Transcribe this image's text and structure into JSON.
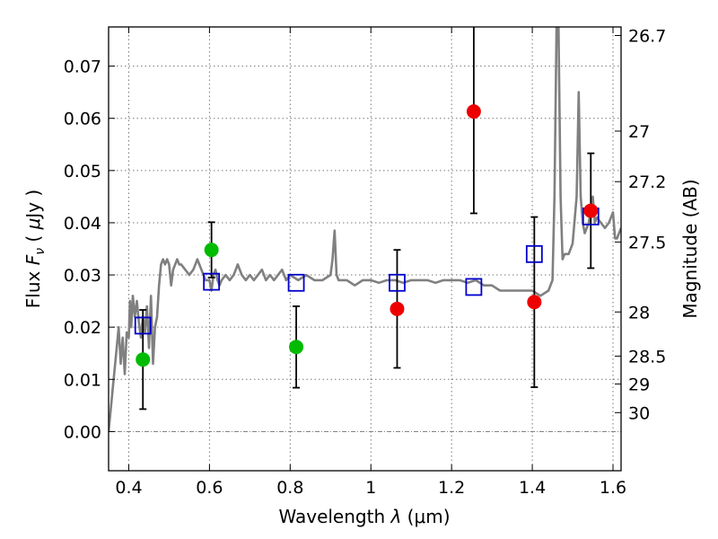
{
  "chart_data": {
    "type": "scatter",
    "xlabel": "Wavelength  λ (μm)",
    "ylabel": "Flux  F_ν  ( μJy )",
    "ylabel_parts": {
      "pre": "Flux  ",
      "var": "F",
      "sub": "ν",
      "mid": "  ( ",
      "unit_var": "μ",
      "post": "Jy )"
    },
    "xlabel_parts": {
      "pre": "Wavelength  ",
      "var": "λ",
      "post": " (μm)"
    },
    "y2label": "Magnitude (AB)",
    "xlim": [
      0.35,
      1.62
    ],
    "ylim": [
      -0.0075,
      0.0775
    ],
    "grid": true,
    "x_ticks": [
      {
        "value": 0.4,
        "label": "0.4"
      },
      {
        "value": 0.6,
        "label": "0.6"
      },
      {
        "value": 0.8,
        "label": "0.8"
      },
      {
        "value": 1.0,
        "label": "1"
      },
      {
        "value": 1.2,
        "label": "1.2"
      },
      {
        "value": 1.4,
        "label": "1.4"
      },
      {
        "value": 1.6,
        "label": "1.6"
      }
    ],
    "y_ticks": [
      {
        "value": 0.0,
        "label": "0.00"
      },
      {
        "value": 0.01,
        "label": "0.01"
      },
      {
        "value": 0.02,
        "label": "0.02"
      },
      {
        "value": 0.03,
        "label": "0.03"
      },
      {
        "value": 0.04,
        "label": "0.04"
      },
      {
        "value": 0.05,
        "label": "0.05"
      },
      {
        "value": 0.06,
        "label": "0.06"
      },
      {
        "value": 0.07,
        "label": "0.07"
      }
    ],
    "y2_ticks": [
      {
        "mag": 26.7,
        "label": "26.7"
      },
      {
        "mag": 27.0,
        "label": "27"
      },
      {
        "mag": 27.2,
        "label": "27.2"
      },
      {
        "mag": 27.5,
        "label": "27.5"
      },
      {
        "mag": 28.0,
        "label": "28"
      },
      {
        "mag": 28.5,
        "label": "28.5"
      },
      {
        "mag": 29.0,
        "label": "29"
      },
      {
        "mag": 30.0,
        "label": "30"
      }
    ],
    "colors": {
      "spectrum": "#808080",
      "model_box": "#0000cc",
      "green_point": "#00bb00",
      "red_point": "#ee0000",
      "errorbar": "#000000",
      "grid": "#777777"
    },
    "series": [
      {
        "marker": "circle-green",
        "points": [
          {
            "x": 0.435,
            "y": 0.0138,
            "err": 0.0095
          },
          {
            "x": 0.605,
            "y": 0.0348,
            "err": 0.0053
          },
          {
            "x": 0.815,
            "y": 0.0162,
            "err": 0.0078
          }
        ]
      },
      {
        "marker": "circle-red",
        "points": [
          {
            "x": 1.065,
            "y": 0.0235,
            "err": 0.0113
          },
          {
            "x": 1.255,
            "y": 0.0613,
            "err": 0.0195
          },
          {
            "x": 1.405,
            "y": 0.0248,
            "err": 0.0163
          },
          {
            "x": 1.545,
            "y": 0.0423,
            "err": 0.011
          }
        ]
      },
      {
        "marker": "open-square-blue",
        "points": [
          {
            "x": 0.435,
            "y": 0.0203
          },
          {
            "x": 0.605,
            "y": 0.0287
          },
          {
            "x": 0.815,
            "y": 0.0285
          },
          {
            "x": 1.065,
            "y": 0.0285
          },
          {
            "x": 1.255,
            "y": 0.0277
          },
          {
            "x": 1.405,
            "y": 0.034
          },
          {
            "x": 1.545,
            "y": 0.0412
          }
        ]
      },
      {
        "marker": "line-gray",
        "x": [
          0.35,
          0.36,
          0.37,
          0.375,
          0.38,
          0.385,
          0.39,
          0.395,
          0.4,
          0.403,
          0.406,
          0.41,
          0.415,
          0.42,
          0.425,
          0.43,
          0.435,
          0.44,
          0.445,
          0.45,
          0.455,
          0.46,
          0.465,
          0.47,
          0.475,
          0.48,
          0.485,
          0.49,
          0.495,
          0.5,
          0.505,
          0.51,
          0.515,
          0.52,
          0.525,
          0.53,
          0.54,
          0.55,
          0.56,
          0.57,
          0.58,
          0.59,
          0.6,
          0.605,
          0.61,
          0.615,
          0.62,
          0.625,
          0.63,
          0.64,
          0.65,
          0.66,
          0.67,
          0.68,
          0.69,
          0.7,
          0.71,
          0.72,
          0.73,
          0.74,
          0.75,
          0.76,
          0.77,
          0.78,
          0.79,
          0.8,
          0.82,
          0.84,
          0.86,
          0.88,
          0.9,
          0.905,
          0.91,
          0.915,
          0.92,
          0.94,
          0.96,
          0.98,
          1.0,
          1.02,
          1.04,
          1.06,
          1.08,
          1.1,
          1.12,
          1.14,
          1.16,
          1.18,
          1.2,
          1.22,
          1.24,
          1.26,
          1.28,
          1.3,
          1.32,
          1.34,
          1.36,
          1.38,
          1.4,
          1.42,
          1.44,
          1.45,
          1.455,
          1.46,
          1.465,
          1.47,
          1.475,
          1.48,
          1.49,
          1.5,
          1.51,
          1.515,
          1.52,
          1.525,
          1.53,
          1.54,
          1.55,
          1.555,
          1.56,
          1.57,
          1.58,
          1.59,
          1.6,
          1.605,
          1.61,
          1.62
        ],
        "y": [
          0.0,
          0.008,
          0.016,
          0.02,
          0.013,
          0.018,
          0.011,
          0.019,
          0.018,
          0.025,
          0.02,
          0.026,
          0.022,
          0.025,
          0.021,
          0.018,
          0.022,
          0.019,
          0.024,
          0.016,
          0.026,
          0.013,
          0.02,
          0.022,
          0.028,
          0.032,
          0.033,
          0.032,
          0.033,
          0.032,
          0.028,
          0.031,
          0.032,
          0.033,
          0.032,
          0.032,
          0.031,
          0.03,
          0.031,
          0.033,
          0.031,
          0.029,
          0.029,
          0.027,
          0.03,
          0.031,
          0.029,
          0.028,
          0.029,
          0.03,
          0.029,
          0.03,
          0.032,
          0.03,
          0.029,
          0.03,
          0.029,
          0.03,
          0.031,
          0.029,
          0.03,
          0.029,
          0.03,
          0.031,
          0.029,
          0.03,
          0.029,
          0.03,
          0.029,
          0.029,
          0.03,
          0.033,
          0.0385,
          0.03,
          0.029,
          0.029,
          0.028,
          0.029,
          0.029,
          0.0285,
          0.029,
          0.029,
          0.0285,
          0.029,
          0.029,
          0.029,
          0.0285,
          0.029,
          0.029,
          0.029,
          0.0285,
          0.029,
          0.028,
          0.028,
          0.027,
          0.027,
          0.027,
          0.027,
          0.027,
          0.026,
          0.027,
          0.029,
          0.045,
          0.0775,
          0.0775,
          0.045,
          0.033,
          0.034,
          0.034,
          0.036,
          0.045,
          0.065,
          0.045,
          0.04,
          0.038,
          0.04,
          0.045,
          0.04,
          0.041,
          0.04,
          0.039,
          0.04,
          0.042,
          0.037,
          0.037,
          0.039
        ]
      }
    ]
  }
}
